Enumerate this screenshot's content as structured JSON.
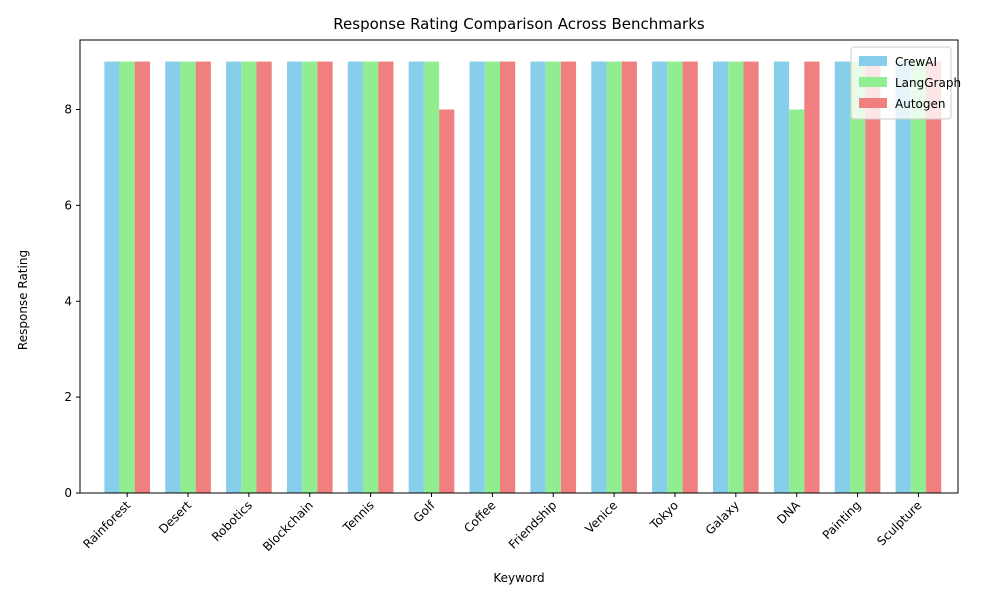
{
  "chart_data": {
    "type": "bar",
    "title": "Response Rating Comparison Across Benchmarks",
    "xlabel": "Keyword",
    "ylabel": "Response Rating",
    "ylim": [
      0,
      9.45
    ],
    "yticks": [
      0,
      2,
      4,
      6,
      8
    ],
    "grid": false,
    "legend_position": "top-right",
    "categories": [
      "Rainforest",
      "Desert",
      "Robotics",
      "Blockchain",
      "Tennis",
      "Golf",
      "Coffee",
      "Friendship",
      "Venice",
      "Tokyo",
      "Galaxy",
      "DNA",
      "Painting",
      "Sculpture"
    ],
    "series": [
      {
        "name": "CrewAI",
        "color": "#87ceeb",
        "values": [
          9,
          9,
          9,
          9,
          9,
          9,
          9,
          9,
          9,
          9,
          9,
          9,
          9,
          9
        ]
      },
      {
        "name": "LangGraph",
        "color": "#90ee90",
        "values": [
          9,
          9,
          9,
          9,
          9,
          9,
          9,
          9,
          9,
          9,
          9,
          8,
          9,
          9
        ]
      },
      {
        "name": "Autogen",
        "color": "#f08080",
        "values": [
          9,
          9,
          9,
          9,
          9,
          8,
          9,
          9,
          9,
          9,
          9,
          9,
          9,
          9
        ]
      }
    ]
  }
}
